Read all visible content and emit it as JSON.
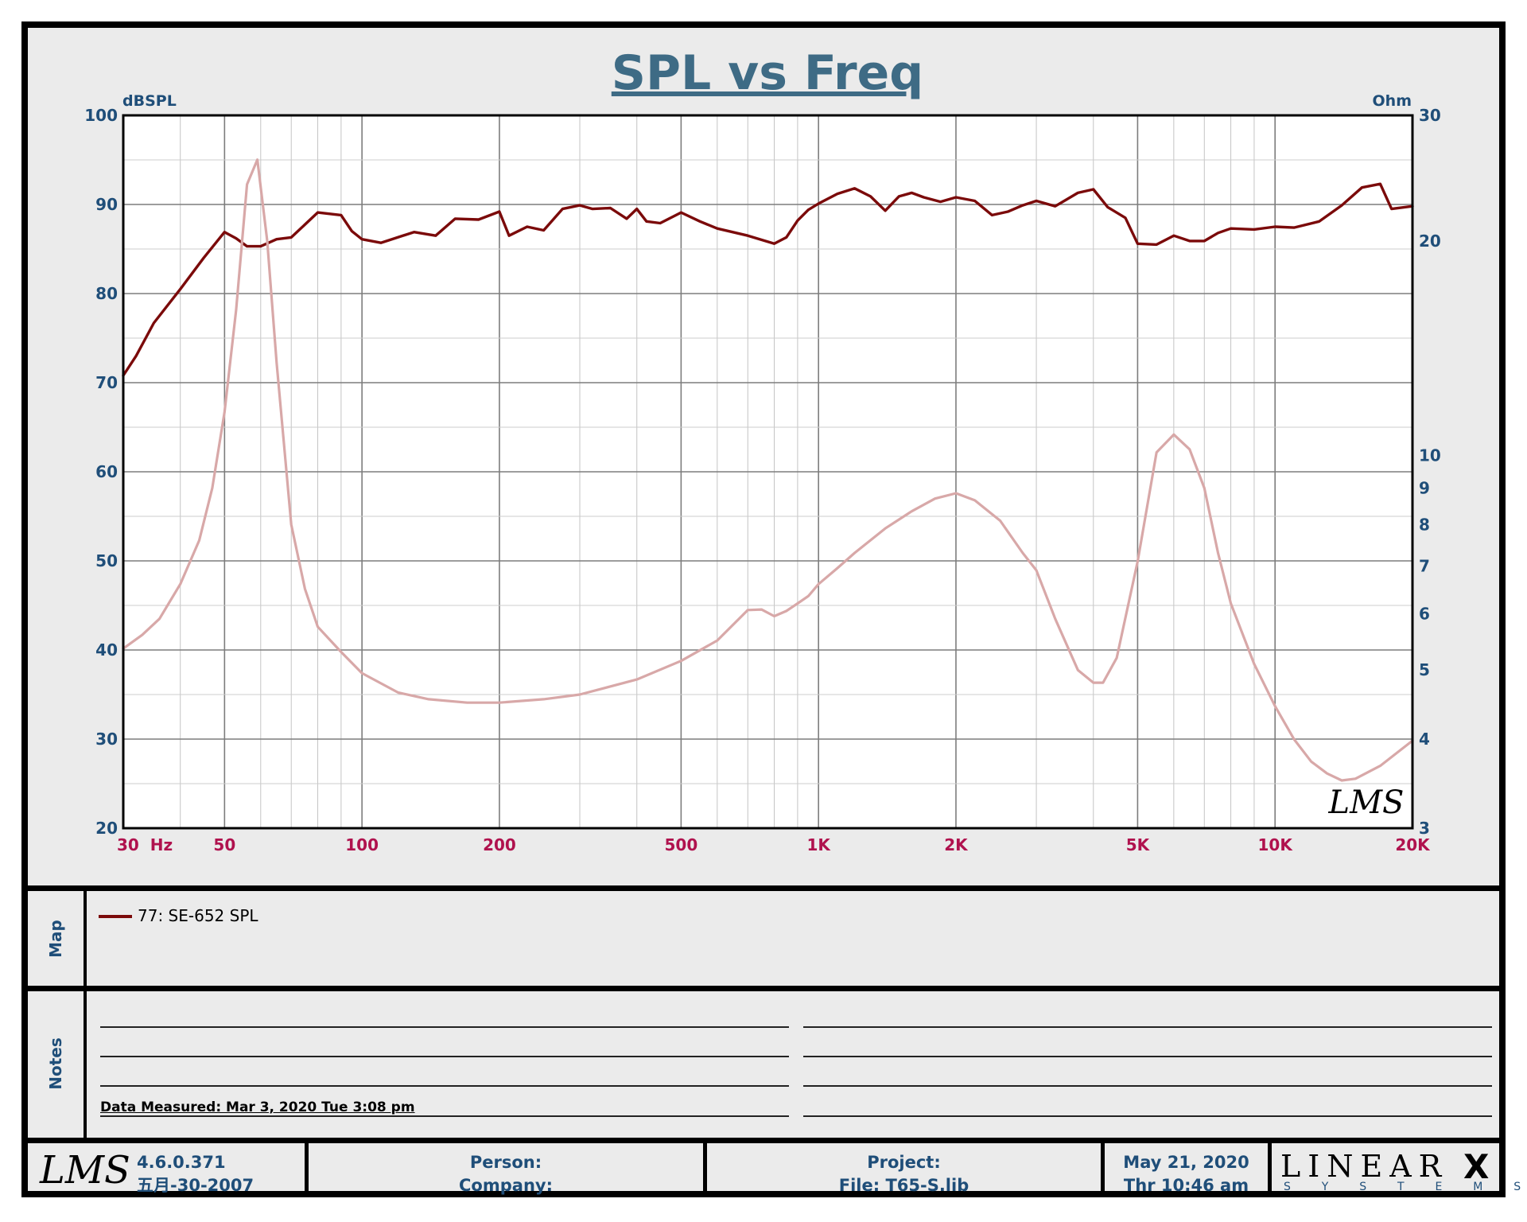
{
  "chart_data": {
    "type": "line",
    "title": "SPL vs Freq",
    "y_left_label": "dBSPL",
    "y_right_label": "Ohm",
    "y_left_ticks": [
      "100",
      "90",
      "80",
      "70",
      "60",
      "50",
      "40",
      "30",
      "20"
    ],
    "y_right_ticks": [
      "30",
      "20",
      "10",
      "9",
      "8",
      "7",
      "6",
      "5",
      "4",
      "3"
    ],
    "x_ticks": [
      "30  Hz",
      "50",
      "100",
      "200",
      "500",
      "1K",
      "2K",
      "5K",
      "10K",
      "20K"
    ],
    "xlim": [
      30,
      20000
    ],
    "x_scale": "log",
    "ylim_left": [
      20,
      100
    ],
    "ylim_right": [
      3,
      30
    ],
    "y_right_scale": "log",
    "grid": true,
    "series": [
      {
        "name": "77: SE-652 SPL",
        "axis": "left",
        "color": "#7b0a0a",
        "x": [
          30,
          32,
          35,
          40,
          45,
          50,
          53,
          56,
          60,
          65,
          70,
          80,
          90,
          95,
          100,
          110,
          130,
          145,
          160,
          180,
          200,
          210,
          230,
          250,
          275,
          300,
          320,
          350,
          380,
          400,
          420,
          450,
          500,
          550,
          600,
          700,
          800,
          850,
          900,
          950,
          1000,
          1100,
          1200,
          1300,
          1400,
          1500,
          1600,
          1700,
          1850,
          2000,
          2200,
          2400,
          2600,
          2800,
          3000,
          3300,
          3700,
          4000,
          4300,
          4700,
          5000,
          5500,
          6000,
          6500,
          7000,
          7500,
          8000,
          9000,
          10000,
          11000,
          12500,
          14000,
          15500,
          17000,
          18000,
          20000
        ],
        "y": [
          70.8,
          73,
          76.7,
          80.5,
          84,
          86.9,
          86.2,
          85.3,
          85.3,
          86.1,
          86.3,
          89.1,
          88.8,
          87,
          86.1,
          85.7,
          86.9,
          86.5,
          88.4,
          88.3,
          89.2,
          86.5,
          87.5,
          87.1,
          89.5,
          89.9,
          89.5,
          89.6,
          88.4,
          89.5,
          88.1,
          87.9,
          89.1,
          88.1,
          87.3,
          86.5,
          85.6,
          86.3,
          88.2,
          89.4,
          90.1,
          91.2,
          91.8,
          90.9,
          89.3,
          90.9,
          91.3,
          90.8,
          90.3,
          90.8,
          90.4,
          88.8,
          89.2,
          89.9,
          90.4,
          89.8,
          91.3,
          91.7,
          89.7,
          88.5,
          85.6,
          85.5,
          86.5,
          85.9,
          85.9,
          86.8,
          87.3,
          87.2,
          87.5,
          87.4,
          88.1,
          89.9,
          91.9,
          92.3,
          89.5,
          89.8
        ]
      },
      {
        "name": "",
        "axis": "right",
        "color": "#d8a8a8",
        "x": [
          30,
          33,
          36,
          40,
          44,
          47,
          50,
          53,
          56,
          59,
          62,
          65,
          70,
          75,
          80,
          90,
          100,
          120,
          140,
          170,
          200,
          250,
          300,
          400,
          500,
          600,
          700,
          750,
          800,
          850,
          900,
          950,
          1000,
          1100,
          1200,
          1400,
          1600,
          1800,
          2000,
          2200,
          2500,
          2800,
          3000,
          3300,
          3700,
          4000,
          4200,
          4500,
          5000,
          5500,
          6000,
          6500,
          7000,
          7500,
          8000,
          9000,
          10000,
          11000,
          12000,
          13000,
          14000,
          15000,
          17000,
          20000
        ],
        "y": [
          5.36,
          5.6,
          5.9,
          6.6,
          7.6,
          9,
          11.5,
          16,
          24,
          26,
          20,
          13.5,
          8,
          6.5,
          5.75,
          5.3,
          4.95,
          4.65,
          4.55,
          4.5,
          4.5,
          4.55,
          4.62,
          4.85,
          5.15,
          5.5,
          6.07,
          6.08,
          5.95,
          6.05,
          6.2,
          6.35,
          6.6,
          6.95,
          7.3,
          7.9,
          8.35,
          8.7,
          8.85,
          8.65,
          8.1,
          7.3,
          6.9,
          5.9,
          5.0,
          4.8,
          4.8,
          5.2,
          7.1,
          10.1,
          10.7,
          10.2,
          9.0,
          7.3,
          6.2,
          5.1,
          4.45,
          4.0,
          3.72,
          3.58,
          3.5,
          3.52,
          3.67,
          3.98
        ]
      }
    ],
    "watermark": "LMS"
  },
  "map": {
    "label": "Map",
    "legend_entry": "77: SE-652 SPL",
    "legend_color": "#7b0a0a"
  },
  "notes": {
    "label": "Notes",
    "data_measured": "Data Measured: Mar  3, 2020  Tue  3:08 pm"
  },
  "footer": {
    "logo": "LMS",
    "version": "4.6.0.371",
    "version_date": "五月-30-2007",
    "person_label": "Person:",
    "company_label": "Company:",
    "project_label": "Project:",
    "file_label": "File: T65-S.lib",
    "date": "May 21, 2020",
    "time": "Thr 10:46 am",
    "brand": "LINEAR",
    "brand_mark": "X",
    "brand_sub": "S  Y  S  T  E  M  S"
  }
}
